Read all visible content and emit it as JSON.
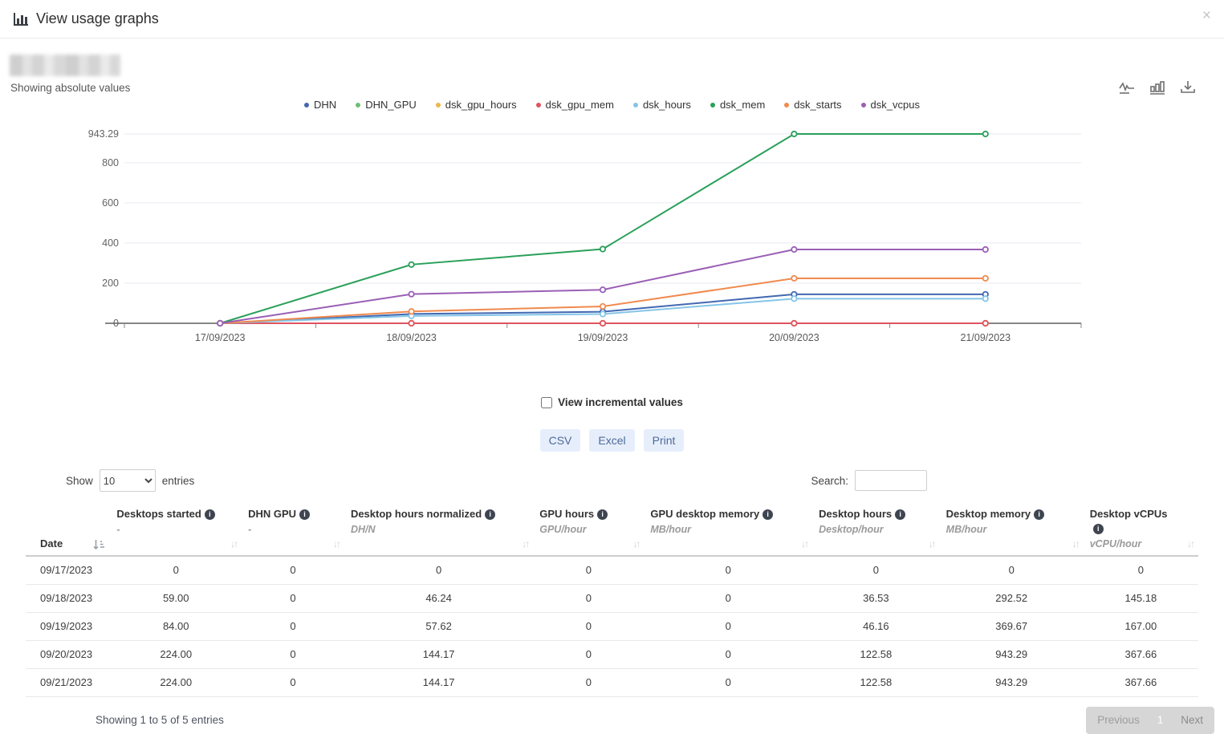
{
  "modal": {
    "title": "View usage graphs"
  },
  "icons": {
    "close_glyph": "×",
    "info_glyph": "i",
    "sort_both_glyph": "↓↑",
    "toolbar": [
      "line-chart-icon",
      "bar-chart-icon",
      "download-icon"
    ]
  },
  "graph_head": {
    "subtitle": "Showing absolute values"
  },
  "chart_data": {
    "type": "line",
    "title": "",
    "xlabel": "",
    "ylabel": "",
    "categories": [
      "17/09/2023",
      "18/09/2023",
      "19/09/2023",
      "20/09/2023",
      "21/09/2023"
    ],
    "series": [
      {
        "name": "DHN",
        "color": "#4268b1",
        "values": [
          0,
          46.24,
          57.62,
          144.17,
          144.17
        ]
      },
      {
        "name": "DHN_GPU",
        "color": "#6fbf72",
        "values": [
          0,
          0,
          0,
          0,
          0
        ]
      },
      {
        "name": "dsk_gpu_hours",
        "color": "#edb64a",
        "values": [
          0,
          0,
          0,
          0,
          0
        ]
      },
      {
        "name": "dsk_gpu_mem",
        "color": "#e0535f",
        "values": [
          0,
          0,
          0,
          0,
          0
        ]
      },
      {
        "name": "dsk_hours",
        "color": "#85c5e8",
        "values": [
          0,
          36.53,
          46.16,
          122.58,
          122.58
        ]
      },
      {
        "name": "dsk_mem",
        "color": "#2aa05a",
        "values": [
          0,
          292.52,
          369.67,
          943.29,
          943.29
        ]
      },
      {
        "name": "dsk_starts",
        "color": "#f08a4e",
        "values": [
          0,
          59.0,
          84.0,
          224.0,
          224.0
        ]
      },
      {
        "name": "dsk_vcpus",
        "color": "#9a5fb5",
        "values": [
          0,
          145.18,
          167.0,
          367.66,
          367.66
        ]
      }
    ],
    "ylim": [
      0,
      943.29
    ],
    "yticks": [
      0,
      200,
      400,
      600,
      800,
      943.29
    ],
    "ytick_labels": [
      "0",
      "200",
      "400",
      "600",
      "800",
      "943.29"
    ],
    "grid": true,
    "legend_position": "top"
  },
  "incremental": {
    "label": "View incremental values",
    "checked": false
  },
  "export_buttons": [
    "CSV",
    "Excel",
    "Print"
  ],
  "table_controls": {
    "show_label": "Show",
    "page_size": "10",
    "entries_label": "entries",
    "search_label": "Search:",
    "search_value": ""
  },
  "table": {
    "columns": [
      {
        "title": "Date",
        "subtitle": "",
        "info": false,
        "sort": "amount"
      },
      {
        "title": "Desktops started",
        "subtitle": "-",
        "info": true,
        "sort": "both"
      },
      {
        "title": "DHN GPU",
        "subtitle": "-",
        "info": true,
        "sort": "both"
      },
      {
        "title": "Desktop hours normalized",
        "subtitle": "DH/N",
        "info": true,
        "sort": "both"
      },
      {
        "title": "GPU hours",
        "subtitle": "GPU/hour",
        "info": true,
        "sort": "both"
      },
      {
        "title": "GPU desktop memory",
        "subtitle": "MB/hour",
        "info": true,
        "sort": "both"
      },
      {
        "title": "Desktop hours",
        "subtitle": "Desktop/hour",
        "info": true,
        "sort": "both"
      },
      {
        "title": "Desktop memory",
        "subtitle": "MB/hour",
        "info": true,
        "sort": "both"
      },
      {
        "title": "Desktop vCPUs",
        "subtitle": "vCPU/hour",
        "info": true,
        "sort": "both"
      }
    ],
    "rows": [
      [
        "09/17/2023",
        "0",
        "0",
        "0",
        "0",
        "0",
        "0",
        "0",
        "0"
      ],
      [
        "09/18/2023",
        "59.00",
        "0",
        "46.24",
        "0",
        "0",
        "36.53",
        "292.52",
        "145.18"
      ],
      [
        "09/19/2023",
        "84.00",
        "0",
        "57.62",
        "0",
        "0",
        "46.16",
        "369.67",
        "167.00"
      ],
      [
        "09/20/2023",
        "224.00",
        "0",
        "144.17",
        "0",
        "0",
        "122.58",
        "943.29",
        "367.66"
      ],
      [
        "09/21/2023",
        "224.00",
        "0",
        "144.17",
        "0",
        "0",
        "122.58",
        "943.29",
        "367.66"
      ]
    ]
  },
  "footer": {
    "info": "Showing 1 to 5 of 5 entries",
    "previous_label": "Previous",
    "current_page": "1",
    "next_label": "Next"
  }
}
